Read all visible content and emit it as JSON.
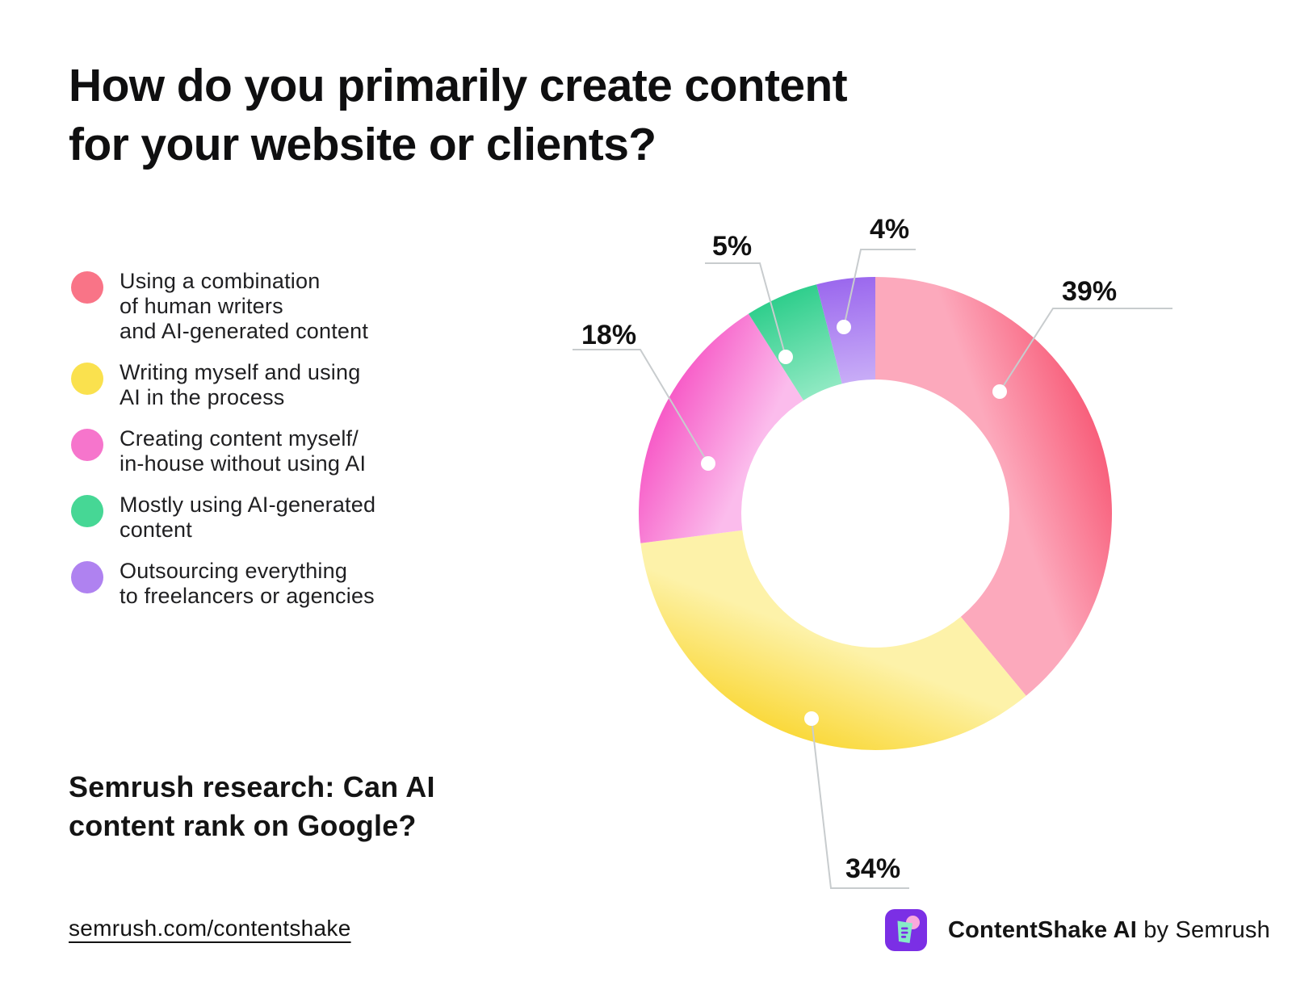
{
  "page": {
    "background": "#FFFFFF"
  },
  "title": {
    "line1": "How do you primarily create content",
    "line2": "for your website or clients?"
  },
  "chart_data": {
    "type": "pie",
    "variant": "donut",
    "title": "How do you primarily create content for your website or clients?",
    "unit": "%",
    "direction": "clockwise",
    "start_angle_deg": 0,
    "legend_position": "left",
    "categories": [
      "Using a combination of human writers and AI-generated content",
      "Writing myself and using AI in the process",
      "Creating content myself/ in-house without using AI",
      "Mostly using AI-generated content",
      "Outsourcing everything to freelancers or agencies"
    ],
    "values": [
      39,
      34,
      18,
      5,
      4
    ],
    "slices": [
      {
        "label": "Using a combination of human writers and AI-generated content",
        "legend_lines": [
          "Using a combination",
          "of human writers",
          "and AI-generated content"
        ],
        "value": 39,
        "display_label": "39%",
        "color_outer": "#F85F7B",
        "color_inner": "#FCA9BC",
        "legend_dot_color": "#F97487"
      },
      {
        "label": "Writing myself and using AI in the process",
        "legend_lines": [
          "Writing myself and using",
          "AI in the process"
        ],
        "value": 34,
        "display_label": "34%",
        "color_outer": "#FAD93C",
        "color_inner": "#FDF2A9",
        "legend_dot_color": "#FAE14E"
      },
      {
        "label": "Creating content myself/ in-house without using AI",
        "legend_lines": [
          "Creating content myself/",
          "in-house without using AI"
        ],
        "value": 18,
        "display_label": "18%",
        "color_outer": "#F75BC7",
        "color_inner": "#FBBCEC",
        "legend_dot_color": "#F675CC"
      },
      {
        "label": "Mostly using AI-generated content",
        "legend_lines": [
          "Mostly using AI-generated",
          "content"
        ],
        "value": 5,
        "display_label": "5%",
        "color_outer": "#2FCE8C",
        "color_inner": "#8FE9C2",
        "legend_dot_color": "#46D795"
      },
      {
        "label": "Outsourcing everything to freelancers or agencies",
        "legend_lines": [
          "Outsourcing everything",
          "to freelancers or agencies"
        ],
        "value": 4,
        "display_label": "4%",
        "color_outer": "#9B68EE",
        "color_inner": "#C8ACF7",
        "legend_dot_color": "#AF82F0"
      }
    ],
    "callout_line_color": "#C8CCCE",
    "callout_dot_color": "#FFFFFF",
    "label_text_color": "#111111"
  },
  "footer": {
    "heading_line1": "Semrush research: Can AI",
    "heading_line2": "content rank on Google?",
    "link": "semrush.com/contentshake"
  },
  "brand": {
    "product_bold": "ContentShake AI",
    "by_text": "by Semrush",
    "logo_purple": "#7B2FE5",
    "logo_mint": "#86EBC7",
    "logo_pink": "#F9A8DC"
  }
}
